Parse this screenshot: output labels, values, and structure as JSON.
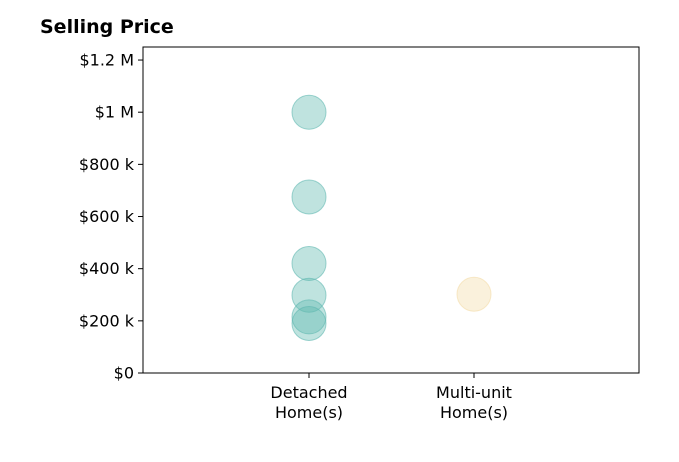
{
  "chart_data": {
    "type": "scatter",
    "title": "Selling Price",
    "xlabel": "",
    "ylabel": "",
    "categories": [
      {
        "lines": [
          "Detached",
          "Home(s)"
        ]
      },
      {
        "lines": [
          "Multi-unit",
          "Home(s)"
        ]
      }
    ],
    "series": [
      {
        "category_index": 0,
        "color": "#5fb8b0",
        "values": [
          1000000,
          675000,
          420000,
          298000,
          215000,
          190000
        ]
      },
      {
        "category_index": 1,
        "color": "#f3dca8",
        "values": [
          302000
        ]
      }
    ],
    "ylim": [
      0,
      1250000
    ],
    "yticks": [
      {
        "value": 0,
        "label": "$0"
      },
      {
        "value": 200000,
        "label": "$200 k"
      },
      {
        "value": 400000,
        "label": "$400 k"
      },
      {
        "value": 600000,
        "label": "$600 k"
      },
      {
        "value": 800000,
        "label": "$800 k"
      },
      {
        "value": 1000000,
        "label": "$1 M"
      },
      {
        "value": 1200000,
        "label": "$1.2 M"
      }
    ],
    "grid": false,
    "legend": "none"
  }
}
